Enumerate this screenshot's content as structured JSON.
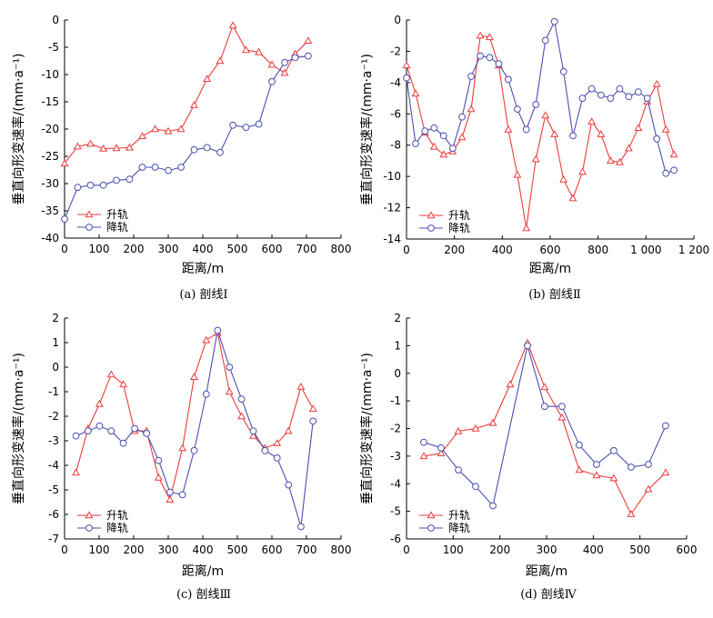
{
  "colors": {
    "ascending": "#ee3b3b",
    "descending": "#4a4fb0"
  },
  "chart_data": [
    {
      "type": "line",
      "caption": "(a) 剖线Ⅰ",
      "xlabel": "距离/m",
      "ylabel": "垂直向形变速率/(mm·a⁻¹)",
      "xlim": [
        0,
        800
      ],
      "xticks": [
        0,
        100,
        200,
        300,
        400,
        500,
        600,
        700,
        800
      ],
      "xtick_labels": [
        "0",
        "100",
        "200",
        "300",
        "400",
        "500",
        "600",
        "700",
        "800"
      ],
      "ylim": [
        -40,
        0
      ],
      "yticks": [
        -40,
        -35,
        -30,
        -25,
        -20,
        -15,
        -10,
        -5,
        0
      ],
      "ytick_labels": [
        "-40",
        "-35",
        "-30",
        "-25",
        "-20",
        "-15",
        "-10",
        "-5",
        "0"
      ],
      "legend": [
        "升轨",
        "降轨"
      ],
      "legend_position": "bottom-left",
      "series": [
        {
          "name": "升轨",
          "marker": "triangle",
          "x": [
            0,
            38,
            75,
            112,
            150,
            188,
            225,
            262,
            300,
            337,
            375,
            412,
            450,
            487,
            525,
            562,
            600,
            637,
            667,
            705
          ],
          "y": [
            -26.3,
            -23.2,
            -22.7,
            -23.6,
            -23.5,
            -23.4,
            -21.3,
            -20.0,
            -20.4,
            -20.0,
            -15.6,
            -10.8,
            -7.5,
            -1.0,
            -5.5,
            -5.9,
            -8.2,
            -9.7,
            -6.2,
            -3.8
          ]
        },
        {
          "name": "降轨",
          "marker": "circle",
          "x": [
            0,
            38,
            75,
            112,
            150,
            188,
            225,
            262,
            300,
            337,
            375,
            412,
            450,
            487,
            525,
            562,
            600,
            637,
            667,
            705
          ],
          "y": [
            -36.5,
            -30.7,
            -30.3,
            -30.3,
            -29.4,
            -29.2,
            -27.0,
            -27.0,
            -27.6,
            -27.0,
            -23.8,
            -23.4,
            -24.3,
            -19.3,
            -19.7,
            -19.1,
            -11.3,
            -7.8,
            -6.9,
            -6.6
          ]
        }
      ]
    },
    {
      "type": "line",
      "caption": "(b) 剖线Ⅱ",
      "xlabel": "距离/m",
      "ylabel": "垂直向形变速率/(mm·a⁻¹)",
      "xlim": [
        0,
        1200
      ],
      "xticks": [
        0,
        200,
        400,
        600,
        800,
        1000,
        1200
      ],
      "xtick_labels": [
        "0",
        "200",
        "400",
        "600",
        "800",
        "1 000",
        "1 200"
      ],
      "ylim": [
        -14,
        0
      ],
      "yticks": [
        -14,
        -12,
        -10,
        -8,
        -6,
        -4,
        -2,
        0
      ],
      "ytick_labels": [
        "-14",
        "-12",
        "-10",
        "-8",
        "-6",
        "-4",
        "-2",
        "0"
      ],
      "legend": [
        "升轨",
        "降轨"
      ],
      "legend_position": "bottom-left",
      "series": [
        {
          "name": "升轨",
          "marker": "triangle",
          "x": [
            0,
            38,
            77,
            115,
            155,
            193,
            232,
            270,
            308,
            347,
            385,
            425,
            463,
            500,
            540,
            580,
            618,
            656,
            695,
            735,
            773,
            812,
            852,
            890,
            928,
            968,
            1005,
            1045,
            1083,
            1117
          ],
          "y": [
            -2.9,
            -4.7,
            -7.2,
            -8.1,
            -8.6,
            -8.4,
            -7.5,
            -5.7,
            -1.0,
            -1.1,
            -2.9,
            -7.0,
            -9.9,
            -13.3,
            -8.9,
            -6.1,
            -7.3,
            -10.2,
            -11.4,
            -9.7,
            -6.5,
            -7.3,
            -9.0,
            -9.1,
            -8.2,
            -6.9,
            -5.2,
            -4.1,
            -7.0,
            -8.6
          ]
        },
        {
          "name": "降轨",
          "marker": "circle",
          "x": [
            0,
            38,
            77,
            115,
            155,
            193,
            232,
            270,
            308,
            347,
            385,
            425,
            463,
            500,
            540,
            580,
            618,
            656,
            695,
            735,
            773,
            812,
            852,
            890,
            928,
            968,
            1005,
            1045,
            1083,
            1117
          ],
          "y": [
            -3.7,
            -7.9,
            -7.1,
            -6.9,
            -7.4,
            -8.2,
            -6.2,
            -3.6,
            -2.3,
            -2.4,
            -2.8,
            -3.8,
            -5.7,
            -7.0,
            -5.4,
            -1.3,
            -0.1,
            -3.3,
            -7.4,
            -5.0,
            -4.4,
            -4.8,
            -5.0,
            -4.4,
            -4.9,
            -4.6,
            -5.0,
            -7.6,
            -9.8,
            -9.6
          ]
        }
      ]
    },
    {
      "type": "line",
      "caption": "(c) 剖线Ⅲ",
      "xlabel": "距离/m",
      "ylabel": "垂直向形变速率/(mm·a⁻¹)",
      "xlim": [
        0,
        800
      ],
      "xticks": [
        0,
        100,
        200,
        300,
        400,
        500,
        600,
        700,
        800
      ],
      "xtick_labels": [
        "0",
        "100",
        "200",
        "300",
        "400",
        "500",
        "600",
        "700",
        "800"
      ],
      "ylim": [
        -7,
        2
      ],
      "yticks": [
        -7,
        -6,
        -5,
        -4,
        -3,
        -2,
        -1,
        0,
        1,
        2
      ],
      "ytick_labels": [
        "-7",
        "-6",
        "-5",
        "-4",
        "-3",
        "-2",
        "-1",
        "0",
        "1",
        "2"
      ],
      "legend": [
        "升轨",
        "降轨"
      ],
      "legend_position": "bottom-left",
      "series": [
        {
          "name": "升轨",
          "marker": "triangle",
          "x": [
            33,
            68,
            101,
            135,
            170,
            203,
            237,
            272,
            305,
            341,
            375,
            410,
            443,
            477,
            512,
            546,
            580,
            615,
            648,
            684,
            719
          ],
          "y": [
            -4.3,
            -2.5,
            -1.5,
            -0.3,
            -0.7,
            -2.6,
            -2.6,
            -4.5,
            -5.4,
            -3.3,
            -0.4,
            1.1,
            1.4,
            -1.0,
            -2.0,
            -2.8,
            -3.3,
            -3.1,
            -2.6,
            -0.8,
            -1.7
          ]
        },
        {
          "name": "降轨",
          "marker": "circle",
          "x": [
            33,
            68,
            101,
            135,
            170,
            203,
            237,
            272,
            305,
            341,
            375,
            410,
            443,
            477,
            512,
            546,
            580,
            615,
            648,
            684,
            719
          ],
          "y": [
            -2.8,
            -2.6,
            -2.4,
            -2.6,
            -3.1,
            -2.5,
            -2.7,
            -3.8,
            -5.1,
            -5.2,
            -3.4,
            -1.1,
            1.5,
            0.0,
            -1.3,
            -2.6,
            -3.4,
            -3.7,
            -4.8,
            -6.5,
            -2.2
          ]
        }
      ]
    },
    {
      "type": "line",
      "caption": "(d) 剖线Ⅳ",
      "xlabel": "距离/m",
      "ylabel": "垂直向形变速率/(mm·a⁻¹)",
      "xlim": [
        0,
        600
      ],
      "xticks": [
        0,
        100,
        200,
        300,
        400,
        500,
        600
      ],
      "xtick_labels": [
        "0",
        "100",
        "200",
        "300",
        "400",
        "500",
        "600"
      ],
      "ylim": [
        -6,
        2
      ],
      "yticks": [
        -6,
        -5,
        -4,
        -3,
        -2,
        -1,
        0,
        1,
        2
      ],
      "ytick_labels": [
        "-6",
        "-5",
        "-4",
        "-3",
        "-2",
        "-1",
        "0",
        "1",
        "2"
      ],
      "legend": [
        "升轨",
        "降轨"
      ],
      "legend_position": "bottom-left",
      "series": [
        {
          "name": "升轨",
          "marker": "triangle",
          "x": [
            37,
            74,
            111,
            148,
            185,
            222,
            259,
            296,
            333,
            370,
            407,
            444,
            481,
            518,
            555
          ],
          "y": [
            -3.0,
            -2.9,
            -2.1,
            -2.0,
            -1.8,
            -0.4,
            1.1,
            -0.5,
            -1.6,
            -3.5,
            -3.7,
            -3.8,
            -5.1,
            -4.2,
            -3.6
          ]
        },
        {
          "name": "降轨",
          "marker": "circle",
          "x": [
            37,
            74,
            111,
            148,
            185,
            259,
            296,
            333,
            370,
            407,
            444,
            481,
            518,
            555
          ],
          "y": [
            -2.5,
            -2.7,
            -3.5,
            -4.1,
            -4.8,
            1.0,
            -1.2,
            -1.2,
            -2.6,
            -3.3,
            -2.8,
            -3.4,
            -3.3,
            -1.9
          ]
        }
      ]
    }
  ]
}
